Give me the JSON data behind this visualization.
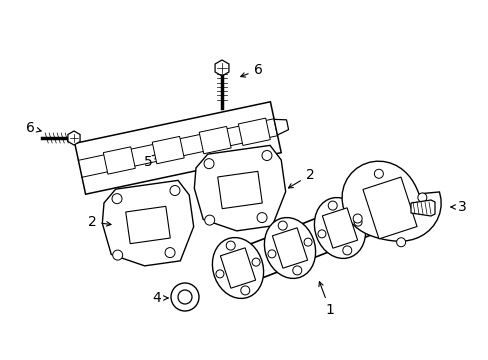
{
  "background_color": "#ffffff",
  "fig_width": 4.89,
  "fig_height": 3.6,
  "dpi": 100
}
